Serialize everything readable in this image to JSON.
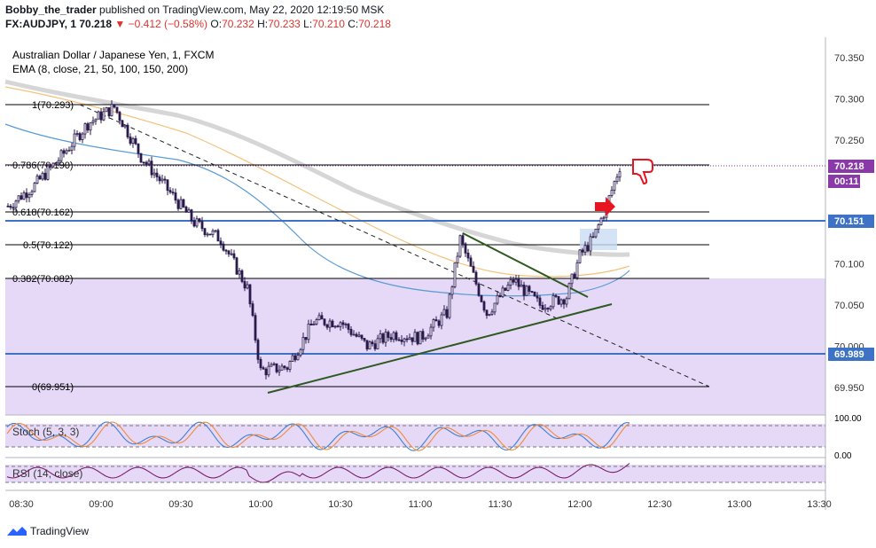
{
  "header": {
    "publisher": "Bobby_the_trader",
    "published_text": "published on TradingView.com, May 22, 2020 12:19:50 MSK",
    "symbol": "FX:AUDJPY, 1",
    "last": "70.218",
    "change": "−0.412 (−0.58%)",
    "o_label": "O:",
    "o": "70.232",
    "h_label": "H:",
    "h": "70.233",
    "l_label": "L:",
    "l": "70.210",
    "c_label": "C:",
    "c": "70.218"
  },
  "legend": {
    "title": "Australian Dollar / Japanese Yen, 1, FXCM",
    "ema": "EMA (8, close, 21, 50, 100, 150, 200)"
  },
  "fib": {
    "l1": "1(70.293)",
    "l0786": "0.786(70.190)",
    "l0618": "0.618(70.162)",
    "l05": "0.5(70.122)",
    "l0382": "0.382(70.082)",
    "l0": "0(69.951)"
  },
  "price_badges": {
    "last": "70.218",
    "countdown": "00:11",
    "level_high": "70.151",
    "level_low": "69.989"
  },
  "y_ticks": [
    "70.350",
    "70.300",
    "70.250",
    "70.100",
    "70.050",
    "70.000",
    "69.950"
  ],
  "x_ticks": [
    "08:30",
    "09:00",
    "09:30",
    "10:00",
    "10:30",
    "11:00",
    "11:30",
    "12:00",
    "12:30",
    "13:00",
    "13:30"
  ],
  "stoch": {
    "label": "Stoch (5, 3, 3)",
    "ticks": [
      "100.00",
      "0.00"
    ]
  },
  "rsi": {
    "label": "RSI (14, close)"
  },
  "footer": {
    "brand": "TradingView"
  },
  "colors": {
    "candle": "#2a1b4d",
    "fib": "#000000",
    "zone": "#e6d9f7",
    "level": "#3d72c4",
    "ema_gray": "#d6d6d6",
    "ema_blue": "#5b9bd5",
    "ema_orange": "#f4c27b",
    "trend": "#2f5a1f",
    "badge": "#3d72c4",
    "badge_last": "#8a3aa8",
    "arrow": "#e8141f"
  },
  "chart_data": {
    "type": "candlestick",
    "title": "Australian Dollar / Japanese Yen, 1, FXCM",
    "ylim": [
      69.94,
      70.37
    ],
    "x_range": [
      "08:24",
      "13:31"
    ],
    "fib_levels": [
      {
        "ratio": 1,
        "price": 70.293
      },
      {
        "ratio": 0.786,
        "price": 70.19
      },
      {
        "ratio": 0.618,
        "price": 70.162
      },
      {
        "ratio": 0.5,
        "price": 70.122
      },
      {
        "ratio": 0.382,
        "price": 70.082
      },
      {
        "ratio": 0,
        "price": 69.951
      }
    ],
    "horizontal_levels": [
      70.151,
      69.989
    ],
    "approx_close_path": [
      {
        "t": "08:25",
        "close": 70.17
      },
      {
        "t": "08:35",
        "close": 70.195
      },
      {
        "t": "08:45",
        "close": 70.23
      },
      {
        "t": "08:55",
        "close": 70.27
      },
      {
        "t": "09:05",
        "close": 70.29
      },
      {
        "t": "09:15",
        "close": 70.23
      },
      {
        "t": "09:25",
        "close": 70.19
      },
      {
        "t": "09:35",
        "close": 70.15
      },
      {
        "t": "09:45",
        "close": 70.13
      },
      {
        "t": "09:55",
        "close": 70.07
      },
      {
        "t": "10:00",
        "close": 69.97
      },
      {
        "t": "10:10",
        "close": 69.975
      },
      {
        "t": "10:20",
        "close": 70.03
      },
      {
        "t": "10:30",
        "close": 70.03
      },
      {
        "t": "10:40",
        "close": 70.0
      },
      {
        "t": "10:50",
        "close": 70.015
      },
      {
        "t": "11:00",
        "close": 70.01
      },
      {
        "t": "11:10",
        "close": 70.04
      },
      {
        "t": "11:15",
        "close": 70.13
      },
      {
        "t": "11:25",
        "close": 70.04
      },
      {
        "t": "11:35",
        "close": 70.08
      },
      {
        "t": "11:45",
        "close": 70.05
      },
      {
        "t": "11:55",
        "close": 70.06
      },
      {
        "t": "12:00",
        "close": 70.11
      },
      {
        "t": "12:05",
        "close": 70.13
      },
      {
        "t": "12:10",
        "close": 70.17
      },
      {
        "t": "12:15",
        "close": 70.218
      }
    ]
  }
}
